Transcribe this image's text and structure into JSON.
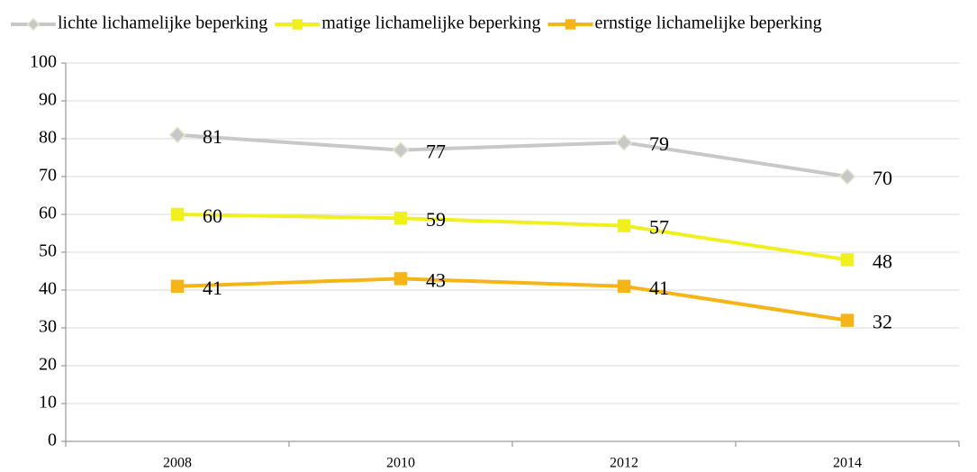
{
  "chart_data": {
    "type": "line",
    "categories": [
      "2008",
      "2010",
      "2012",
      "2014"
    ],
    "series": [
      {
        "name": "lichte lichamelijke beperking",
        "color": "#c8c8c8",
        "marker": "diamond",
        "values": [
          81,
          77,
          79,
          70
        ]
      },
      {
        "name": "matige lichamelijke beperking",
        "color": "#f0f020",
        "marker": "square",
        "values": [
          60,
          59,
          57,
          48
        ]
      },
      {
        "name": "ernstige lichamelijke beperking",
        "color": "#f5b518",
        "marker": "square",
        "values": [
          41,
          43,
          41,
          32
        ]
      }
    ],
    "ylim": [
      0,
      100
    ],
    "yticks": [
      0,
      10,
      20,
      30,
      40,
      50,
      60,
      70,
      80,
      90,
      100
    ],
    "grid": true,
    "legend": "top"
  }
}
